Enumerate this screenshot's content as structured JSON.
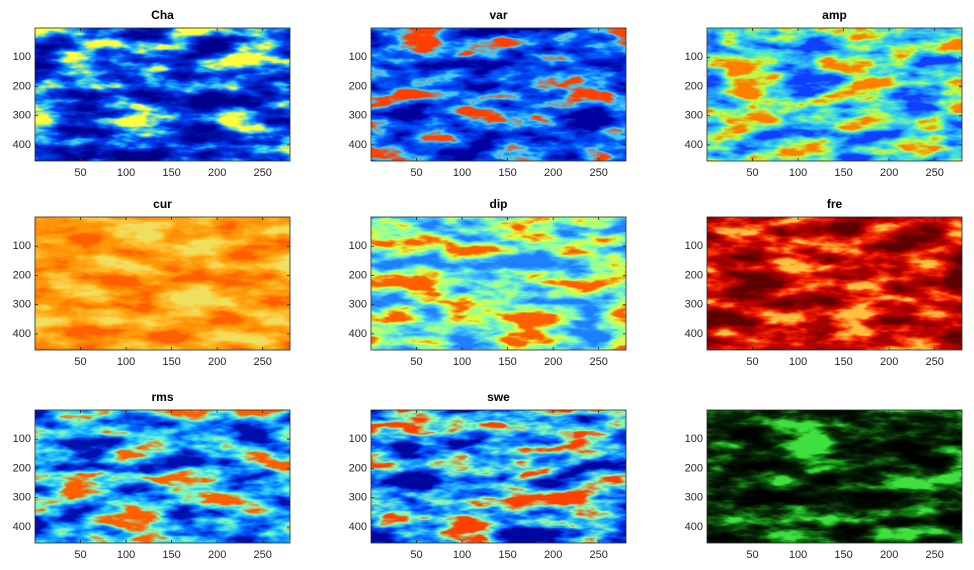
{
  "chart_data": [
    {
      "type": "image",
      "title": "Cha",
      "xlim": [
        0,
        280
      ],
      "ylim": [
        455,
        0
      ],
      "xticks": [
        50,
        100,
        150,
        200,
        250
      ],
      "yticks": [
        100,
        200,
        300,
        400
      ],
      "colormap": [
        "#00008f",
        "#0018b8",
        "#0040f0",
        "#20c0ff",
        "#ffff40"
      ]
    },
    {
      "type": "image",
      "title": "var",
      "xlim": [
        0,
        280
      ],
      "ylim": [
        455,
        0
      ],
      "xticks": [
        50,
        100,
        150,
        200,
        250
      ],
      "yticks": [
        100,
        200,
        300,
        400
      ],
      "colormap": [
        "#00009f",
        "#0030e0",
        "#0060ff",
        "#40d0ff",
        "#ff4000"
      ]
    },
    {
      "type": "image",
      "title": "amp",
      "xlim": [
        0,
        280
      ],
      "ylim": [
        455,
        0
      ],
      "xticks": [
        50,
        100,
        150,
        200,
        250
      ],
      "yticks": [
        100,
        200,
        300,
        400
      ],
      "colormap": [
        "#1040ff",
        "#20a0ff",
        "#40e0e0",
        "#c0ff40",
        "#ff8000"
      ]
    },
    {
      "type": "image",
      "title": "cur",
      "xlim": [
        0,
        280
      ],
      "ylim": [
        455,
        0
      ],
      "xticks": [
        50,
        100,
        150,
        200,
        250
      ],
      "yticks": [
        100,
        200,
        300,
        400
      ],
      "colormap": [
        "#ff6000",
        "#ff8a00",
        "#ffa010",
        "#ffc030",
        "#f0e060"
      ]
    },
    {
      "type": "image",
      "title": "dip",
      "xlim": [
        0,
        280
      ],
      "ylim": [
        455,
        0
      ],
      "xticks": [
        50,
        100,
        150,
        200,
        250
      ],
      "yticks": [
        100,
        200,
        300,
        400
      ],
      "colormap": [
        "#2080ff",
        "#40c0ff",
        "#80ffb0",
        "#e0ff40",
        "#ff6000"
      ]
    },
    {
      "type": "image",
      "title": "fre",
      "xlim": [
        0,
        280
      ],
      "ylim": [
        455,
        0
      ],
      "xticks": [
        50,
        100,
        150,
        200,
        250
      ],
      "yticks": [
        100,
        200,
        300,
        400
      ],
      "colormap": [
        "#600000",
        "#900000",
        "#c00000",
        "#ff3000",
        "#ffc040"
      ]
    },
    {
      "type": "image",
      "title": "rms",
      "xlim": [
        0,
        280
      ],
      "ylim": [
        455,
        0
      ],
      "xticks": [
        50,
        100,
        150,
        200,
        250
      ],
      "yticks": [
        100,
        200,
        300,
        400
      ],
      "colormap": [
        "#0010b0",
        "#0060ff",
        "#20c0ff",
        "#80ffc0",
        "#ff6000"
      ]
    },
    {
      "type": "image",
      "title": "swe",
      "xlim": [
        0,
        280
      ],
      "ylim": [
        455,
        0
      ],
      "xticks": [
        50,
        100,
        150,
        200,
        250
      ],
      "yticks": [
        100,
        200,
        300,
        400
      ],
      "colormap": [
        "#0008a0",
        "#0050ff",
        "#20b0ff",
        "#90ffb0",
        "#ff4000"
      ]
    },
    {
      "type": "image",
      "xlim": [
        0,
        280
      ],
      "ylim": [
        455,
        0
      ],
      "xticks": [
        50,
        100,
        150,
        200,
        250
      ],
      "yticks": [
        100,
        200,
        300,
        400
      ],
      "colormap": [
        "#000000",
        "#001000",
        "#0a2a0a",
        "#108010",
        "#40e040"
      ]
    }
  ]
}
